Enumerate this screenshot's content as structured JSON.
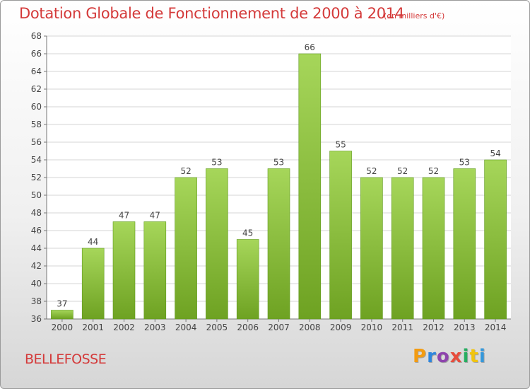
{
  "chart_data": {
    "type": "bar",
    "title": "Dotation Globale de Fonctionnement de 2000 à 2014",
    "unit_note": "(en milliers d'€)",
    "categories": [
      "2000",
      "2001",
      "2002",
      "2003",
      "2004",
      "2005",
      "2006",
      "2007",
      "2008",
      "2009",
      "2010",
      "2011",
      "2012",
      "2013",
      "2014"
    ],
    "values": [
      37,
      44,
      47,
      47,
      52,
      53,
      45,
      53,
      66,
      55,
      52,
      52,
      52,
      53,
      54
    ],
    "ylim": [
      36,
      68
    ],
    "yticks": [
      36,
      38,
      40,
      42,
      44,
      46,
      48,
      50,
      52,
      54,
      56,
      58,
      60,
      62,
      64,
      66,
      68
    ],
    "grid": true,
    "legend": "none",
    "colors": {
      "bar_top": "#a6d65a",
      "bar_bottom": "#6ea222",
      "bar_edge": "#5f9a1c",
      "grid": "#d6d6d6",
      "title": "#d43a3a"
    }
  },
  "footer": {
    "commune": "BELLEFOSSE",
    "logo_text": "Proxiti",
    "logo_colors": [
      "#f39c12",
      "#2e86de",
      "#8e44ad",
      "#e74c3c",
      "#27ae60",
      "#f1c40f",
      "#3498db"
    ]
  }
}
